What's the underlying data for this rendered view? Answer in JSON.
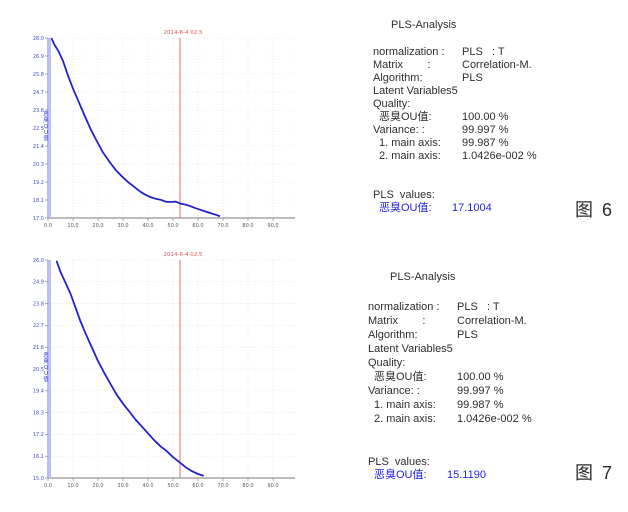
{
  "chart_data": [
    {
      "type": "line",
      "title": "",
      "xlabel": "",
      "ylabel": "恶臭OU值",
      "grid": true,
      "legend": "none",
      "xlim": [
        0,
        98.8
      ],
      "ylim": [
        17.0,
        28.0
      ],
      "x_tick_values": [
        0,
        10,
        20,
        30,
        40,
        50,
        60,
        70,
        80,
        90
      ],
      "x_tick_labels": [
        "0.0",
        "10.0",
        "20.0",
        "30.0",
        "40.0",
        "50.0",
        "60.0",
        "70.0",
        "80.0",
        "90.0"
      ],
      "y_tick_values": [
        28.0,
        26.9,
        25.8,
        24.7,
        23.6,
        22.5,
        21.4,
        20.3,
        19.2,
        18.1,
        17.0
      ],
      "marker_line_x": 52.8,
      "marker_label": "2014-6-4 02.5",
      "cursor_line_x": 0.8,
      "series": [
        {
          "name": "恶臭OU值",
          "color": "#2222cc",
          "x": [
            1.5,
            2.5,
            4,
            6,
            8,
            10,
            12,
            14.5,
            17,
            19.5,
            22,
            24.5,
            27,
            29.5,
            32,
            34.5,
            37,
            39,
            41,
            43,
            45,
            47,
            49,
            51,
            53,
            55,
            57,
            59,
            61,
            63,
            65,
            67,
            68.5
          ],
          "y": [
            27.95,
            27.6,
            27.25,
            26.6,
            25.7,
            24.9,
            24.2,
            23.3,
            22.45,
            21.7,
            21.0,
            20.45,
            19.95,
            19.55,
            19.2,
            18.9,
            18.6,
            18.42,
            18.28,
            18.18,
            18.12,
            18.0,
            17.98,
            18.0,
            17.88,
            17.82,
            17.72,
            17.6,
            17.5,
            17.4,
            17.3,
            17.2,
            17.12
          ]
        }
      ]
    },
    {
      "type": "line",
      "title": "",
      "xlabel": "",
      "ylabel": "恶臭OU值",
      "grid": true,
      "legend": "none",
      "xlim": [
        0,
        98.8
      ],
      "ylim": [
        15.0,
        26.0
      ],
      "x_tick_values": [
        0,
        10,
        20,
        30,
        40,
        50,
        60,
        70,
        80,
        90
      ],
      "x_tick_labels": [
        "0.0",
        "10.0",
        "20.0",
        "30.0",
        "40.0",
        "50.0",
        "60.0",
        "70.0",
        "80.0",
        "90.0"
      ],
      "y_tick_values": [
        26.0,
        24.9,
        23.8,
        22.7,
        21.6,
        20.5,
        19.4,
        18.3,
        17.2,
        16.1,
        15.0
      ],
      "marker_line_x": 52.8,
      "marker_label": "2014-6-4 02.5",
      "cursor_line_x": 0.8,
      "series": [
        {
          "name": "恶臭OU值",
          "color": "#2222cc",
          "x": [
            3.5,
            5,
            7,
            9,
            11,
            13,
            15,
            17.5,
            20,
            22.5,
            25,
            27.5,
            30,
            32.5,
            35,
            37.5,
            40,
            42.5,
            45,
            47.5,
            50,
            52.5,
            55,
            57.5,
            60,
            62
          ],
          "y": [
            25.92,
            25.4,
            24.85,
            24.3,
            23.6,
            22.9,
            22.3,
            21.6,
            20.9,
            20.3,
            19.75,
            19.2,
            18.75,
            18.35,
            17.95,
            17.6,
            17.25,
            16.9,
            16.6,
            16.35,
            16.05,
            15.8,
            15.55,
            15.35,
            15.2,
            15.12
          ]
        }
      ]
    }
  ],
  "figures": [
    {
      "caption": "图 6",
      "panel": {
        "title": "PLS-Analysis",
        "rows": [
          {
            "label": "normalization :",
            "value": "PLS   : T"
          },
          {
            "label": "Matrix        :",
            "value": "Correlation-M."
          },
          {
            "label": "Algorithm:",
            "value": "PLS"
          },
          {
            "label": "Latent Variables5",
            "value": ""
          },
          {
            "label": "Quality:",
            "value": ""
          },
          {
            "label": "恶臭OU值:",
            "value": "100.00 %"
          },
          {
            "label": "Variance: :",
            "value": "99.997 %"
          },
          {
            "label": "1. main axis:",
            "value": "99.987 %"
          },
          {
            "label": "2. main axis:",
            "value": "1.0426e-002 %"
          }
        ],
        "pls_values_label": "PLS  values:",
        "result_label": "恶臭OU值:",
        "result_value": "17.1004"
      }
    },
    {
      "caption": "图 7",
      "panel": {
        "title": "PLS-Analysis",
        "rows": [
          {
            "label": "normalization :",
            "value": "PLS   : T"
          },
          {
            "label": "Matrix        :",
            "value": "Correlation-M."
          },
          {
            "label": "Algorithm:",
            "value": "PLS"
          },
          {
            "label": "Latent Variables5",
            "value": ""
          },
          {
            "label": "Quality:",
            "value": ""
          },
          {
            "label": "恶臭OU值:",
            "value": "100.00 %"
          },
          {
            "label": "Variance: :",
            "value": "99.997 %"
          },
          {
            "label": "1. main axis:",
            "value": "99.987 %"
          },
          {
            "label": "2. main axis:",
            "value": "1.0426e-002 %"
          }
        ],
        "pls_values_label": "PLS  values:",
        "result_label": "恶臭OU值:",
        "result_value": "15.1190"
      }
    }
  ],
  "colors": {
    "series_blue": "#2222cc",
    "marker_red": "#e36a6a",
    "result_blue": "#2525e0",
    "axis_blue": "#9aa0e8"
  }
}
